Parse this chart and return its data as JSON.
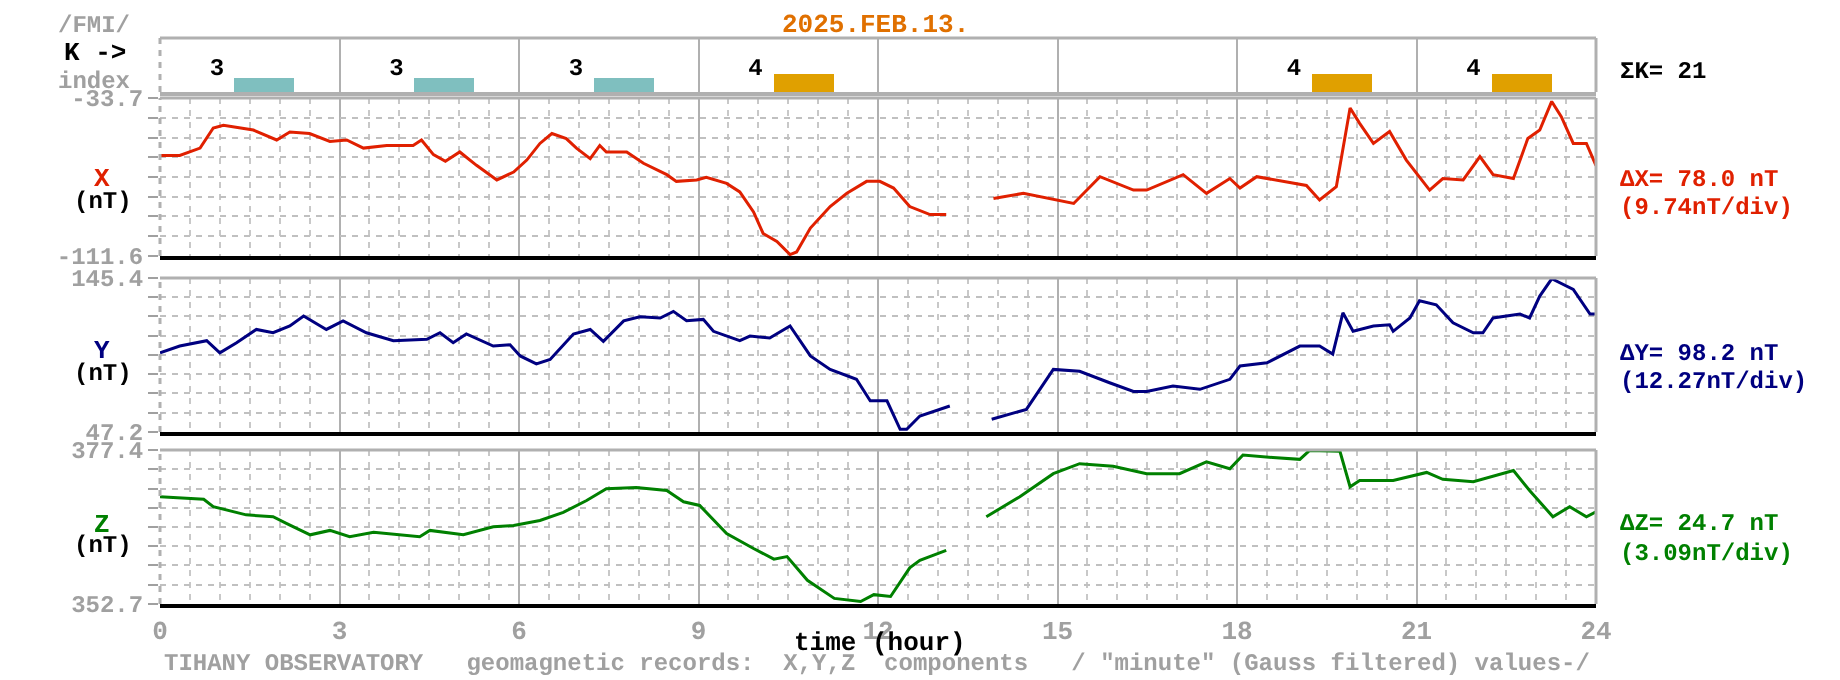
{
  "chart_data": [
    {
      "type": "bar",
      "title": "2025.FEB.13.",
      "ylabel": "K ->",
      "annotations": [
        "/FMI/",
        "index",
        "ΣK= 21"
      ],
      "x": [
        1.75,
        4.75,
        7.75,
        10.75,
        13.75,
        16.75,
        19.75,
        22.75
      ],
      "values": [
        3,
        3,
        3,
        4,
        null,
        null,
        4,
        4
      ],
      "colors": [
        "#7fbfbf",
        "#7fbfbf",
        "#7fbfbf",
        "#e0a000",
        null,
        null,
        "#e0a000",
        "#e0a000"
      ],
      "data_labels": true,
      "xlim": [
        0,
        24
      ],
      "xticks": [
        0,
        3,
        6,
        9,
        12,
        15,
        18,
        21,
        24
      ],
      "grid": "x",
      "tick_labels": false
    },
    {
      "type": "line",
      "ylabel": "X",
      "annotations": [
        "(nT)",
        "ΔX= 78.0 nT",
        "(9.74nT/div)"
      ],
      "xlim": [
        0,
        24
      ],
      "xticks": [
        0,
        3,
        6,
        9,
        12,
        15,
        18,
        21,
        24
      ],
      "ylim": [
        -111.6,
        -33.7
      ],
      "yticks": [
        -33.7,
        {
          "value": -43.4,
          "label": null
        },
        {
          "value": -53.2,
          "label": null
        },
        {
          "value": -62.9,
          "label": null
        },
        {
          "value": -72.7,
          "label": null
        },
        {
          "value": -82.4,
          "label": null
        },
        {
          "value": -92.1,
          "label": null
        },
        {
          "value": -101.9,
          "label": null
        },
        -111.6
      ],
      "grid": true,
      "tick_labels": "y",
      "x": [
        0,
        0.33,
        0.67,
        0.89,
        1.06,
        1.56,
        1.95,
        2.17,
        2.5,
        2.84,
        3.12,
        3.4,
        3.79,
        4.23,
        4.37,
        4.57,
        4.77,
        5.01,
        5.29,
        5.63,
        5.91,
        6.13,
        6.35,
        6.55,
        6.79,
        6.96,
        7.19,
        7.35,
        7.46,
        7.8,
        8.08,
        8.47,
        8.63,
        8.97,
        9.13,
        9.47,
        9.69,
        9.92,
        10.08,
        10.31,
        10.53,
        10.64,
        10.87,
        11.2,
        11.48,
        11.81,
        12.03,
        12.26,
        12.53,
        12.87,
        13.14,
        13.5,
        13.93,
        14.43,
        15.27,
        15.71,
        16.27,
        16.49,
        17.1,
        17.49,
        17.88,
        18.05,
        18.33,
        19.16,
        19.38,
        19.66,
        19.89,
        20.05,
        20.28,
        20.55,
        20.83,
        21.22,
        21.44,
        21.78,
        22.06,
        22.28,
        22.62,
        22.86,
        23.06,
        23.26,
        23.42,
        23.62,
        23.84,
        24
      ],
      "series": [
        {
          "color": "#e02000",
          "values": [
            -62.0,
            -62.0,
            -58.4,
            -48.5,
            -47.2,
            -49.5,
            -54.4,
            -50.5,
            -51.2,
            -55.1,
            -54.4,
            -58.4,
            -57.1,
            -57.1,
            -54.4,
            -61.6,
            -64.9,
            -60.3,
            -66.9,
            -74.1,
            -70.2,
            -64.3,
            -56.1,
            -51.2,
            -53.7,
            -58.4,
            -63.6,
            -57.1,
            -60.3,
            -60.3,
            -65.9,
            -71.5,
            -74.8,
            -74.1,
            -72.8,
            -75.8,
            -80.0,
            -89.9,
            -100.5,
            -104.4,
            -110.9,
            -109.6,
            -97.8,
            -87.2,
            -80.7,
            -74.8,
            -74.8,
            -78.1,
            -87.2,
            -91.2,
            -91.2,
            null,
            -83.3,
            -80.7,
            -85.7,
            -72.5,
            -79.1,
            -79.1,
            -71.5,
            -80.7,
            -73.4,
            -78.1,
            -72.5,
            -76.8,
            -84.0,
            -77.4,
            -38.6,
            -46.2,
            -56.1,
            -50.2,
            -64.3,
            -79.1,
            -73.4,
            -74.1,
            -62.6,
            -71.5,
            -73.4,
            -53.7,
            -49.5,
            -35.4,
            -42.9,
            -56.1,
            -56.1,
            -67.0
          ]
        }
      ]
    },
    {
      "type": "line",
      "ylabel": "Y",
      "annotations": [
        "(nT)",
        "ΔY= 98.2 nT",
        "(12.27nT/div)"
      ],
      "xlim": [
        0,
        24
      ],
      "xticks": [
        0,
        3,
        6,
        9,
        12,
        15,
        18,
        21,
        24
      ],
      "ylim": [
        47.2,
        145.4
      ],
      "yticks": [
        {
          "value": 133.1,
          "label": null
        },
        {
          "value": 120.9,
          "label": null
        },
        {
          "value": 108.6,
          "label": null
        },
        {
          "value": 96.3,
          "label": null
        },
        {
          "value": 84.1,
          "label": null
        },
        {
          "value": 71.8,
          "label": null
        },
        {
          "value": 59.5,
          "label": null
        },
        47.2,
        145.4
      ],
      "grid": true,
      "tick_labels": "y",
      "x": [
        0,
        0.33,
        0.78,
        1.0,
        1.28,
        1.61,
        1.89,
        2.17,
        2.4,
        2.78,
        3.06,
        3.45,
        3.9,
        4.46,
        4.68,
        4.9,
        5.12,
        5.57,
        5.85,
        6.02,
        6.29,
        6.52,
        6.91,
        7.19,
        7.41,
        7.75,
        8.02,
        8.36,
        8.58,
        8.8,
        9.08,
        9.25,
        9.69,
        9.86,
        10.19,
        10.53,
        10.87,
        11.2,
        11.64,
        11.87,
        12.15,
        12.37,
        12.48,
        12.7,
        13.2,
        13.5,
        13.9,
        14.48,
        14.93,
        15.37,
        15.87,
        16.27,
        16.49,
        16.93,
        17.38,
        17.88,
        18.05,
        18.5,
        19.05,
        19.38,
        19.6,
        19.77,
        19.94,
        20.28,
        20.55,
        20.61,
        20.89,
        21.05,
        21.33,
        21.61,
        21.95,
        22.11,
        22.28,
        22.73,
        22.89,
        23.06,
        23.26,
        23.62,
        23.9,
        24
      ],
      "series": [
        {
          "color": "#000080",
          "values": [
            97.7,
            102.0,
            105.4,
            97.7,
            104.1,
            112.6,
            110.5,
            114.8,
            121.2,
            112.6,
            118.1,
            110.5,
            105.4,
            106.3,
            110.5,
            104.1,
            109.7,
            102.0,
            102.8,
            95.7,
            90.6,
            93.5,
            109.7,
            112.6,
            105.0,
            118.1,
            120.7,
            119.9,
            124.1,
            118.1,
            119.0,
            111.4,
            105.4,
            108.4,
            107.1,
            114.8,
            95.7,
            87.1,
            80.8,
            67.1,
            67.1,
            48.9,
            48.9,
            57.4,
            63.8,
            null,
            55.3,
            61.6,
            87.1,
            85.9,
            78.6,
            73.1,
            73.1,
            76.5,
            74.4,
            80.8,
            89.3,
            91.3,
            102.0,
            102.0,
            96.9,
            123.2,
            111.4,
            114.8,
            115.6,
            111.4,
            119.9,
            130.9,
            128.3,
            116.8,
            110.5,
            110.5,
            119.9,
            122.4,
            119.9,
            133.9,
            144.9,
            138.1,
            122.4,
            122.4
          ]
        }
      ]
    },
    {
      "type": "line",
      "ylabel": "Z",
      "xlabel": "time (hour)",
      "annotations": [
        "(nT)",
        "ΔZ= 24.7 nT",
        "(3.09nT/div)",
        "TIHANY OBSERVATORY   geomagnetic records:  X,Y,Z  components   / \"minute\" (Gauss filtered) values-/"
      ],
      "xlim": [
        0,
        24
      ],
      "xticks": [
        0,
        3,
        6,
        9,
        12,
        15,
        18,
        21,
        24
      ],
      "ylim": [
        352.7,
        377.4
      ],
      "yticks": [
        377.4,
        {
          "value": 374.3,
          "label": null
        },
        {
          "value": 371.2,
          "label": null
        },
        {
          "value": 368.1,
          "label": null
        },
        {
          "value": 365.0,
          "label": null
        },
        {
          "value": 362.0,
          "label": null
        },
        {
          "value": 358.9,
          "label": null
        },
        {
          "value": 355.8,
          "label": null
        },
        352.7
      ],
      "grid": true,
      "x": [
        0,
        0.73,
        0.89,
        1.44,
        1.89,
        2.12,
        2.51,
        2.84,
        3.17,
        3.57,
        4.34,
        4.51,
        5.07,
        5.57,
        5.91,
        6.35,
        6.74,
        7.13,
        7.46,
        7.96,
        8.47,
        8.75,
        9.02,
        9.47,
        9.92,
        10.26,
        10.48,
        10.82,
        11.27,
        11.71,
        11.93,
        12.21,
        12.53,
        12.7,
        13.14,
        13.5,
        13.81,
        14.37,
        14.93,
        15.37,
        15.93,
        16.49,
        17.04,
        17.49,
        17.88,
        18.1,
        18.6,
        19.05,
        19.21,
        19.72,
        19.89,
        20.05,
        20.61,
        21.17,
        21.44,
        21.95,
        22.62,
        22.89,
        23.28,
        23.56,
        23.84,
        24
      ],
      "series": [
        {
          "color": "#008000",
          "values": [
            369.9,
            369.5,
            368.3,
            367.0,
            366.7,
            365.6,
            363.8,
            364.5,
            363.5,
            364.2,
            363.5,
            364.5,
            363.8,
            365.1,
            365.3,
            366.1,
            367.4,
            369.3,
            371.2,
            371.4,
            370.9,
            369.1,
            368.5,
            364.0,
            361.6,
            359.9,
            360.3,
            356.5,
            353.6,
            353.1,
            354.2,
            353.9,
            358.5,
            359.7,
            361.3,
            null,
            366.7,
            369.9,
            373.6,
            375.2,
            374.8,
            373.6,
            373.6,
            375.5,
            374.4,
            376.6,
            376.2,
            375.9,
            377.3,
            377.2,
            371.5,
            372.5,
            372.5,
            373.8,
            372.7,
            372.3,
            374.1,
            370.9,
            366.7,
            368.3,
            366.7,
            367.5
          ]
        }
      ]
    }
  ]
}
